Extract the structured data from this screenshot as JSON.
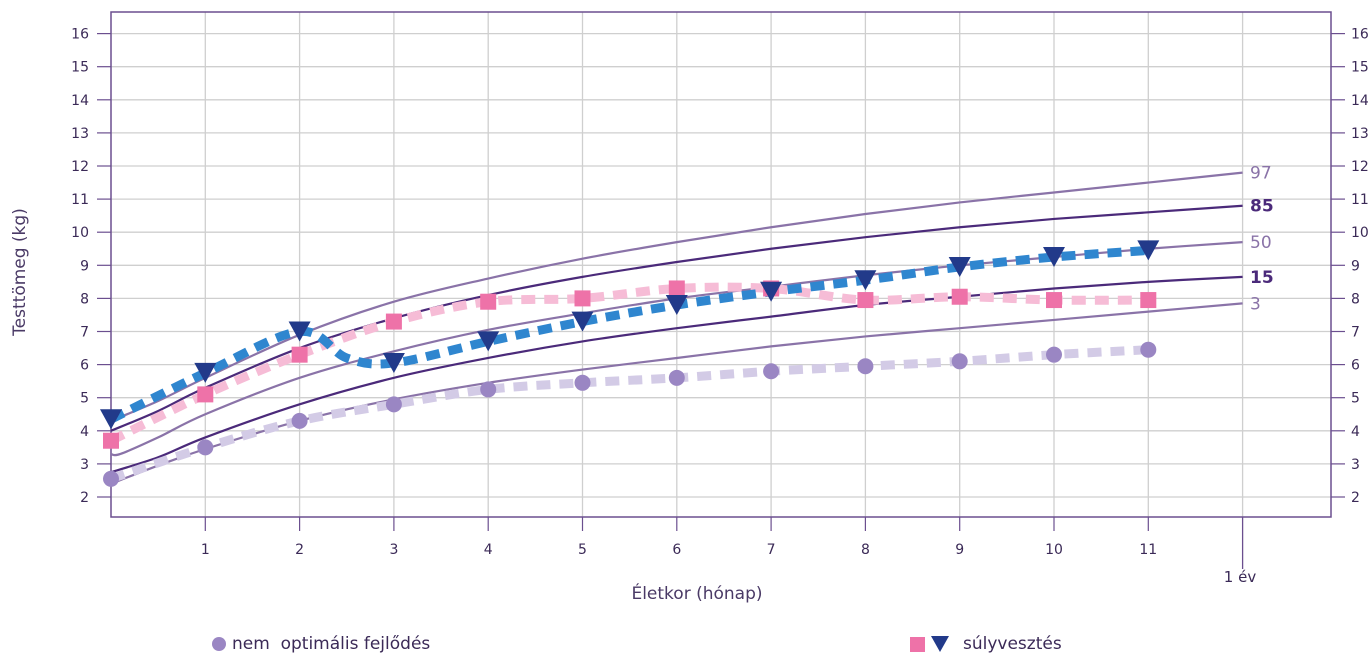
{
  "chart_data": {
    "type": "line",
    "xlabel": "Életkor (hónap)",
    "ylabel": "Testtömeg (kg)",
    "xlim": [
      0,
      12
    ],
    "ylim": [
      1.5,
      16.5
    ],
    "x_ticks": [
      "1",
      "2",
      "3",
      "4",
      "5",
      "6",
      "7",
      "8",
      "9",
      "10",
      "11"
    ],
    "x_end_label": "1 év",
    "y_ticks": [
      2,
      3,
      4,
      5,
      6,
      7,
      8,
      9,
      10,
      11,
      12,
      13,
      14,
      15,
      16
    ],
    "grid": true,
    "percentile_curves": [
      {
        "label": "97",
        "bold": false,
        "color": "#8a73a8",
        "x": [
          0,
          0.5,
          1,
          2,
          3,
          4,
          5,
          6,
          7,
          8,
          9,
          10,
          11,
          12
        ],
        "y": [
          4.3,
          4.9,
          5.6,
          6.9,
          7.9,
          8.6,
          9.2,
          9.7,
          10.15,
          10.55,
          10.9,
          11.2,
          11.5,
          11.8
        ]
      },
      {
        "label": "85",
        "bold": true,
        "color": "#4b2a7a",
        "x": [
          0,
          0.5,
          1,
          2,
          3,
          4,
          5,
          6,
          7,
          8,
          9,
          10,
          11,
          12
        ],
        "y": [
          4.0,
          4.6,
          5.3,
          6.5,
          7.4,
          8.1,
          8.65,
          9.1,
          9.5,
          9.85,
          10.15,
          10.4,
          10.6,
          10.8
        ]
      },
      {
        "label": "50",
        "bold": false,
        "color": "#8a73a8",
        "x": [
          0,
          0.1,
          0.5,
          1,
          2,
          3,
          4,
          5,
          6,
          7,
          8,
          9,
          10,
          11,
          12
        ],
        "y": [
          3.3,
          3.3,
          3.8,
          4.5,
          5.6,
          6.4,
          7.05,
          7.55,
          8.0,
          8.35,
          8.7,
          9.0,
          9.25,
          9.5,
          9.7
        ]
      },
      {
        "label": "15",
        "bold": true,
        "color": "#4b2a7a",
        "x": [
          0,
          0.5,
          1,
          2,
          3,
          4,
          5,
          6,
          7,
          8,
          9,
          10,
          11,
          12
        ],
        "y": [
          2.75,
          3.2,
          3.8,
          4.8,
          5.6,
          6.2,
          6.7,
          7.1,
          7.45,
          7.8,
          8.05,
          8.3,
          8.5,
          8.65
        ]
      },
      {
        "label": "3",
        "bold": false,
        "color": "#8a73a8",
        "x": [
          0,
          0.5,
          1,
          2,
          3,
          4,
          5,
          6,
          7,
          8,
          9,
          10,
          11,
          12
        ],
        "y": [
          2.4,
          2.95,
          3.45,
          4.3,
          4.95,
          5.45,
          5.85,
          6.2,
          6.55,
          6.85,
          7.1,
          7.35,
          7.6,
          7.85
        ]
      }
    ],
    "series": [
      {
        "name": "nem optimális fejlődés",
        "marker": "circle",
        "color": "#9a86c3",
        "line_color": "#d3cbe6",
        "x": [
          0,
          1,
          2,
          3,
          4,
          5,
          6,
          7,
          8,
          9,
          10,
          11
        ],
        "y": [
          2.55,
          3.5,
          4.3,
          4.8,
          5.25,
          5.45,
          5.6,
          5.8,
          5.95,
          6.1,
          6.3,
          6.45
        ]
      },
      {
        "name": "súlyvesztés",
        "marker": "square",
        "color": "#ee72a8",
        "line_color": "#f6bcd6",
        "x": [
          0,
          1,
          2,
          3,
          4,
          5,
          6,
          7,
          8,
          9,
          10,
          11
        ],
        "y": [
          3.7,
          5.1,
          6.3,
          7.3,
          7.9,
          8.0,
          8.3,
          8.3,
          7.95,
          8.05,
          7.95,
          7.95
        ]
      },
      {
        "name": "súlyvesztés",
        "marker": "triangle",
        "color": "#223a8a",
        "line_color": "#2f86cf",
        "x": [
          0,
          1,
          2,
          2.5,
          3,
          4,
          5,
          6,
          7,
          8,
          9,
          10,
          11
        ],
        "y": [
          4.35,
          5.75,
          7.0,
          6.2,
          6.05,
          6.7,
          7.3,
          7.8,
          8.2,
          8.55,
          8.95,
          9.25,
          9.45
        ],
        "marker_x": [
          0,
          1,
          2,
          3,
          4,
          5,
          6,
          7,
          8,
          9,
          10,
          11
        ],
        "marker_y": [
          4.35,
          5.75,
          7.0,
          6.05,
          6.7,
          7.3,
          7.8,
          8.2,
          8.55,
          8.95,
          9.25,
          9.45
        ]
      }
    ]
  },
  "legend": {
    "left_label": "nem  optimális fejlődés",
    "right_label": "súlyvesztés",
    "circle_color": "#9a86c3",
    "square_color": "#ee72a8",
    "triangle_color": "#223a8a"
  }
}
